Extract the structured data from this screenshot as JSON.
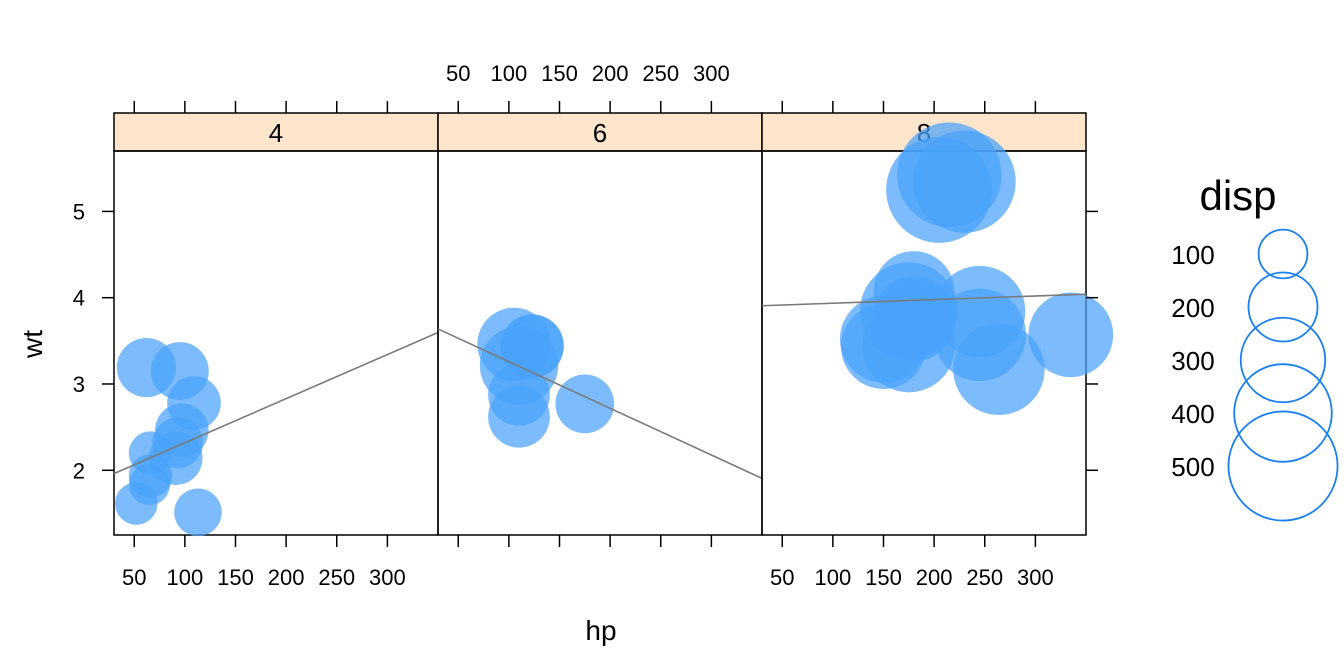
{
  "chart_data": {
    "type": "scatter",
    "facet_variable": "cyl",
    "panels": [
      {
        "label": "4",
        "points": [
          {
            "hp": 93,
            "wt": 2.32,
            "disp": 108
          },
          {
            "hp": 62,
            "wt": 3.19,
            "disp": 146.7
          },
          {
            "hp": 95,
            "wt": 3.15,
            "disp": 140.8
          },
          {
            "hp": 66,
            "wt": 2.2,
            "disp": 78.7
          },
          {
            "hp": 52,
            "wt": 1.615,
            "disp": 75.7
          },
          {
            "hp": 65,
            "wt": 1.835,
            "disp": 71.1
          },
          {
            "hp": 97,
            "wt": 2.465,
            "disp": 120.1
          },
          {
            "hp": 66,
            "wt": 1.935,
            "disp": 79
          },
          {
            "hp": 91,
            "wt": 2.14,
            "disp": 120.3
          },
          {
            "hp": 113,
            "wt": 1.513,
            "disp": 95.1
          },
          {
            "hp": 109,
            "wt": 2.78,
            "disp": 121
          }
        ],
        "fit": {
          "intercept": 1.808,
          "slope": 0.00511
        }
      },
      {
        "label": "6",
        "points": [
          {
            "hp": 110,
            "wt": 2.62,
            "disp": 160
          },
          {
            "hp": 110,
            "wt": 2.875,
            "disp": 160
          },
          {
            "hp": 110,
            "wt": 3.215,
            "disp": 258
          },
          {
            "hp": 105,
            "wt": 3.46,
            "disp": 225
          },
          {
            "hp": 123,
            "wt": 3.44,
            "disp": 167.6
          },
          {
            "hp": 123,
            "wt": 3.44,
            "disp": 167.6
          },
          {
            "hp": 175,
            "wt": 2.77,
            "disp": 145
          }
        ],
        "fit": {
          "intercept": 3.8,
          "slope": -0.00541
        }
      },
      {
        "label": "8",
        "points": [
          {
            "hp": 175,
            "wt": 3.44,
            "disp": 360
          },
          {
            "hp": 245,
            "wt": 3.57,
            "disp": 360
          },
          {
            "hp": 180,
            "wt": 4.07,
            "disp": 275.8
          },
          {
            "hp": 180,
            "wt": 3.73,
            "disp": 275.8
          },
          {
            "hp": 180,
            "wt": 3.78,
            "disp": 275.8
          },
          {
            "hp": 205,
            "wt": 5.25,
            "disp": 472
          },
          {
            "hp": 215,
            "wt": 5.424,
            "disp": 460
          },
          {
            "hp": 230,
            "wt": 5.345,
            "disp": 440
          },
          {
            "hp": 150,
            "wt": 3.52,
            "disp": 318
          },
          {
            "hp": 150,
            "wt": 3.435,
            "disp": 304
          },
          {
            "hp": 245,
            "wt": 3.84,
            "disp": 350
          },
          {
            "hp": 175,
            "wt": 3.845,
            "disp": 400
          },
          {
            "hp": 264,
            "wt": 3.17,
            "disp": 351
          },
          {
            "hp": 335,
            "wt": 3.57,
            "disp": 301
          }
        ],
        "fit": {
          "intercept": 3.894,
          "slope": 0.00042
        }
      }
    ],
    "xlabel": "hp",
    "ylabel": "wt",
    "xlim": [
      30,
      350
    ],
    "ylim": [
      1.25,
      5.7
    ],
    "x_ticks": [
      50,
      100,
      150,
      200,
      250,
      300
    ],
    "y_ticks": [
      2,
      3,
      4,
      5
    ],
    "legend": {
      "title": "disp",
      "position": "right",
      "entries": [
        {
          "label": "100",
          "value": 100
        },
        {
          "label": "200",
          "value": 200
        },
        {
          "label": "300",
          "value": 300
        },
        {
          "label": "400",
          "value": 400
        },
        {
          "label": "500",
          "value": 500
        }
      ]
    },
    "colors": {
      "point": "#49a2fb",
      "legend_stroke": "#1a80f0",
      "strip": "#ffe5cc",
      "fit_line": "#7a7a7a"
    }
  }
}
